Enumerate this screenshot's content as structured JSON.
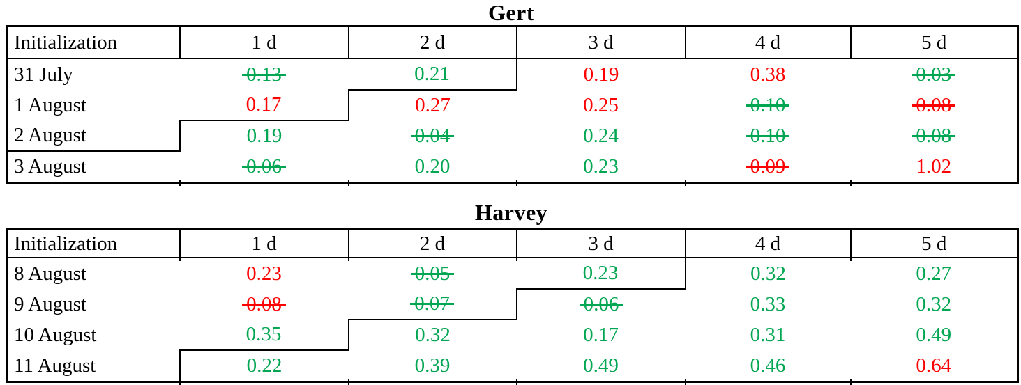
{
  "page": {
    "background": "#FFFFFF"
  },
  "colors": {
    "green": "#00A651",
    "red": "#FE0000",
    "border": "#000000",
    "title_text": "#000000"
  },
  "tables": [
    {
      "title": "Gert",
      "columns": [
        "Initialization",
        "1 d",
        "2 d",
        "3 d",
        "4 d",
        "5 d"
      ],
      "rows": [
        {
          "label": "31 July",
          "cells": [
            {
              "value": "0.13",
              "color": "green",
              "strike": true
            },
            {
              "value": "0.21",
              "color": "green",
              "strike": false
            },
            {
              "value": "0.19",
              "color": "red",
              "strike": false
            },
            {
              "value": "0.38",
              "color": "red",
              "strike": false
            },
            {
              "value": "0.03",
              "color": "green",
              "strike": true
            }
          ]
        },
        {
          "label": "1 August",
          "cells": [
            {
              "value": "0.17",
              "color": "red",
              "strike": false
            },
            {
              "value": "0.27",
              "color": "red",
              "strike": false
            },
            {
              "value": "0.25",
              "color": "red",
              "strike": false
            },
            {
              "value": "0.10",
              "color": "green",
              "strike": true
            },
            {
              "value": "0.08",
              "color": "red",
              "strike": true
            }
          ]
        },
        {
          "label": "2 August",
          "cells": [
            {
              "value": "0.19",
              "color": "green",
              "strike": false
            },
            {
              "value": "0.04",
              "color": "green",
              "strike": true
            },
            {
              "value": "0.24",
              "color": "green",
              "strike": false
            },
            {
              "value": "0.10",
              "color": "green",
              "strike": true
            },
            {
              "value": "0.08",
              "color": "green",
              "strike": true
            }
          ]
        },
        {
          "label": "3 August",
          "cells": [
            {
              "value": "0.06",
              "color": "green",
              "strike": true
            },
            {
              "value": "0.20",
              "color": "green",
              "strike": false
            },
            {
              "value": "0.23",
              "color": "green",
              "strike": false
            },
            {
              "value": "0.09",
              "color": "red",
              "strike": true
            },
            {
              "value": "1.02",
              "color": "red",
              "strike": false
            }
          ]
        }
      ],
      "step_line_cells": [
        {
          "row": 0,
          "col": 2,
          "right": true,
          "bottom": true
        },
        {
          "row": 1,
          "col": 1,
          "right": true,
          "bottom": true
        },
        {
          "row": 2,
          "col": 0,
          "right": true,
          "bottom": true
        }
      ],
      "header_ticks": false
    },
    {
      "title": "Harvey",
      "columns": [
        "Initialization",
        "1 d",
        "2 d",
        "3 d",
        "4 d",
        "5 d"
      ],
      "rows": [
        {
          "label": "8 August",
          "cells": [
            {
              "value": "0.23",
              "color": "red",
              "strike": false
            },
            {
              "value": "0.05",
              "color": "green",
              "strike": true
            },
            {
              "value": "0.23",
              "color": "green",
              "strike": false
            },
            {
              "value": "0.32",
              "color": "green",
              "strike": false
            },
            {
              "value": "0.27",
              "color": "green",
              "strike": false
            }
          ]
        },
        {
          "label": "9 August",
          "cells": [
            {
              "value": "0.08",
              "color": "red",
              "strike": true
            },
            {
              "value": "0.07",
              "color": "green",
              "strike": true
            },
            {
              "value": "0.06",
              "color": "green",
              "strike": true
            },
            {
              "value": "0.33",
              "color": "green",
              "strike": false
            },
            {
              "value": "0.32",
              "color": "green",
              "strike": false
            }
          ]
        },
        {
          "label": "10 August",
          "cells": [
            {
              "value": "0.35",
              "color": "green",
              "strike": false
            },
            {
              "value": "0.32",
              "color": "green",
              "strike": false
            },
            {
              "value": "0.17",
              "color": "green",
              "strike": false
            },
            {
              "value": "0.31",
              "color": "green",
              "strike": false
            },
            {
              "value": "0.49",
              "color": "green",
              "strike": false
            }
          ]
        },
        {
          "label": "11 August",
          "cells": [
            {
              "value": "0.22",
              "color": "green",
              "strike": false
            },
            {
              "value": "0.39",
              "color": "green",
              "strike": false
            },
            {
              "value": "0.49",
              "color": "green",
              "strike": false
            },
            {
              "value": "0.46",
              "color": "green",
              "strike": false
            },
            {
              "value": "0.64",
              "color": "red",
              "strike": false
            }
          ]
        }
      ],
      "step_line_cells": [
        {
          "row": 0,
          "col": 3,
          "right": true,
          "bottom": true
        },
        {
          "row": 1,
          "col": 2,
          "right": true,
          "bottom": true
        },
        {
          "row": 2,
          "col": 1,
          "right": true,
          "bottom": true
        },
        {
          "row": 3,
          "col": 0,
          "right": true,
          "bottom": false
        }
      ],
      "header_ticks": true
    }
  ]
}
